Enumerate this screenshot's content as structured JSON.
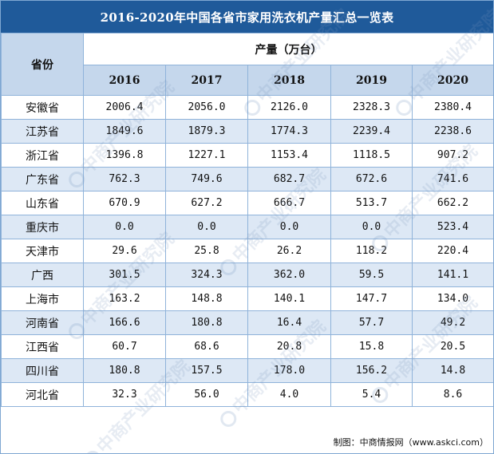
{
  "title": "2016-2020年中国各省市家用洗衣机产量汇总一览表",
  "header": {
    "province_label": "省份",
    "unit_label": "产量（万台）",
    "years": [
      "2016",
      "2017",
      "2018",
      "2019",
      "2020"
    ]
  },
  "rows": [
    {
      "province": "安徽省",
      "values": [
        "2006.4",
        "2056.0",
        "2126.0",
        "2328.3",
        "2380.4"
      ]
    },
    {
      "province": "江苏省",
      "values": [
        "1849.6",
        "1879.3",
        "1774.3",
        "2239.4",
        "2238.6"
      ]
    },
    {
      "province": "浙江省",
      "values": [
        "1396.8",
        "1227.1",
        "1153.4",
        "1118.5",
        "907.2"
      ]
    },
    {
      "province": "广东省",
      "values": [
        "762.3",
        "749.6",
        "682.7",
        "672.6",
        "741.6"
      ]
    },
    {
      "province": "山东省",
      "values": [
        "670.9",
        "627.2",
        "666.7",
        "513.7",
        "662.2"
      ]
    },
    {
      "province": "重庆市",
      "values": [
        "0.0",
        "0.0",
        "0.0",
        "0.0",
        "523.4"
      ]
    },
    {
      "province": "天津市",
      "values": [
        "29.6",
        "25.8",
        "26.2",
        "118.2",
        "220.4"
      ]
    },
    {
      "province": "广西",
      "values": [
        "301.5",
        "324.3",
        "362.0",
        "59.5",
        "141.1"
      ]
    },
    {
      "province": "上海市",
      "values": [
        "163.2",
        "148.8",
        "140.1",
        "147.7",
        "134.0"
      ]
    },
    {
      "province": "河南省",
      "values": [
        "166.6",
        "180.8",
        "16.4",
        "57.7",
        "49.2"
      ]
    },
    {
      "province": "江西省",
      "values": [
        "60.7",
        "68.6",
        "20.8",
        "15.8",
        "20.5"
      ]
    },
    {
      "province": "四川省",
      "values": [
        "180.8",
        "157.5",
        "178.0",
        "156.2",
        "14.8"
      ]
    },
    {
      "province": "河北省",
      "values": [
        "32.3",
        "56.0",
        "4.0",
        "5.4",
        "8.6"
      ]
    }
  ],
  "source": "制图：中商情报网（www.askci.com）",
  "watermark": "中商产业研究院"
}
